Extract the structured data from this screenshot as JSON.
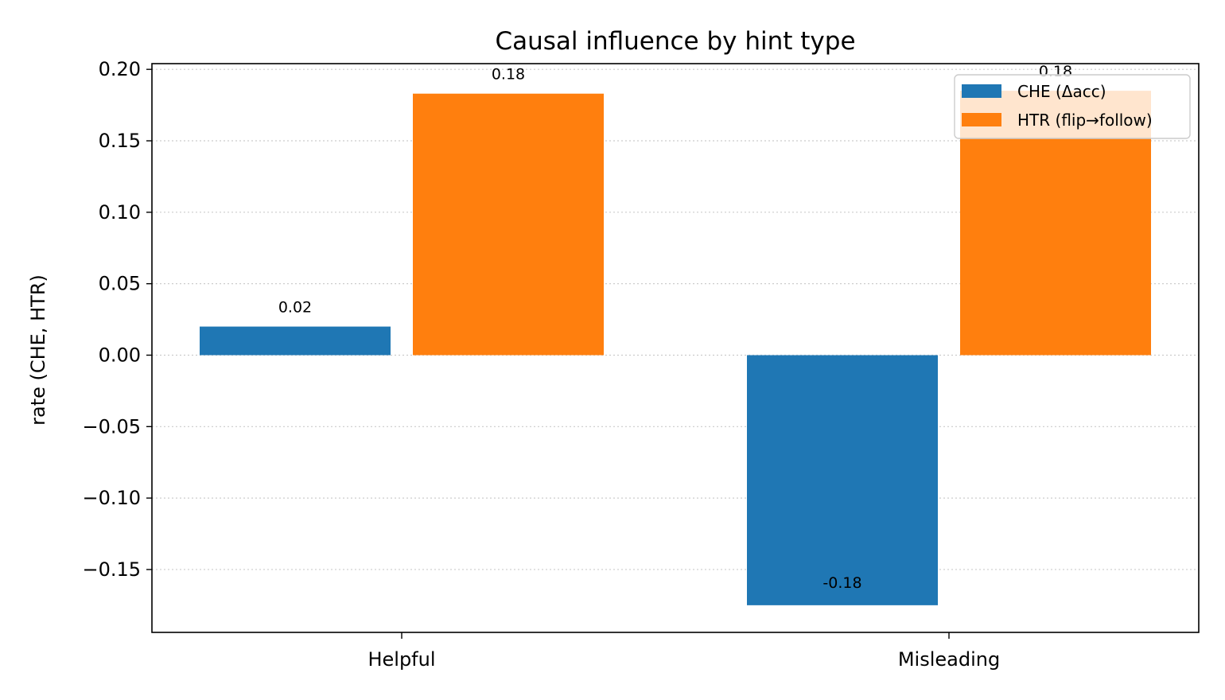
{
  "chart_data": {
    "type": "bar",
    "title": "Causal influence by hint type",
    "xlabel": "",
    "ylabel": "rate (CHE, HTR)",
    "categories": [
      "Helpful",
      "Misleading"
    ],
    "series": [
      {
        "name": "CHE (Δacc)",
        "color": "#1f77b4",
        "values": [
          0.02,
          -0.175
        ],
        "labels": [
          "0.02",
          "-0.18"
        ]
      },
      {
        "name": "HTR (flip→follow)",
        "color": "#ff7f0e",
        "values": [
          0.183,
          0.185
        ],
        "labels": [
          "0.18",
          "0.18"
        ]
      }
    ],
    "ylim": [
      -0.194,
      0.204
    ],
    "yticks": [
      0.2,
      0.15,
      0.1,
      0.05,
      0.0,
      -0.05,
      -0.1,
      -0.15
    ],
    "ytick_labels": [
      "0.20",
      "0.15",
      "0.10",
      "0.05",
      "0.00",
      "−0.05",
      "−0.10",
      "−0.15"
    ],
    "grid": "y-dotted",
    "legend_position": "top-right"
  }
}
